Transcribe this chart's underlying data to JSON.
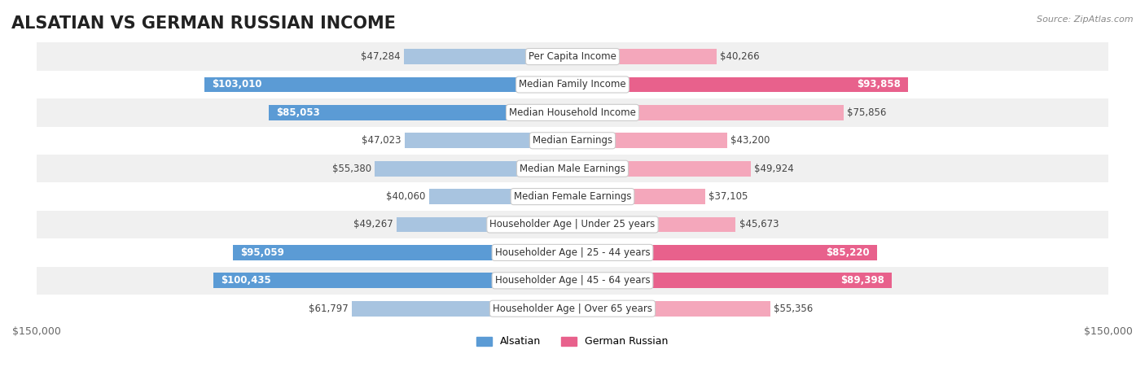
{
  "title": "ALSATIAN VS GERMAN RUSSIAN INCOME",
  "source": "Source: ZipAtlas.com",
  "categories": [
    "Per Capita Income",
    "Median Family Income",
    "Median Household Income",
    "Median Earnings",
    "Median Male Earnings",
    "Median Female Earnings",
    "Householder Age | Under 25 years",
    "Householder Age | 25 - 44 years",
    "Householder Age | 45 - 64 years",
    "Householder Age | Over 65 years"
  ],
  "alsatian_values": [
    47284,
    103010,
    85053,
    47023,
    55380,
    40060,
    49267,
    95059,
    100435,
    61797
  ],
  "german_russian_values": [
    40266,
    93858,
    75856,
    43200,
    49924,
    37105,
    45673,
    85220,
    89398,
    55356
  ],
  "alsatian_labels": [
    "$47,284",
    "$103,010",
    "$85,053",
    "$47,023",
    "$55,380",
    "$40,060",
    "$49,267",
    "$95,059",
    "$100,435",
    "$61,797"
  ],
  "german_russian_labels": [
    "$40,266",
    "$93,858",
    "$75,856",
    "$43,200",
    "$49,924",
    "$37,105",
    "$45,673",
    "$85,220",
    "$89,398",
    "$55,356"
  ],
  "alsatian_color_light": "#a8c4e0",
  "alsatian_color_dark": "#5b9bd5",
  "german_russian_color_light": "#f4a7bb",
  "german_russian_color_dark": "#e8618c",
  "max_value": 150000,
  "bar_height": 0.55,
  "row_bg_color_odd": "#f0f0f0",
  "row_bg_color_even": "#ffffff",
  "label_box_color": "#ffffff",
  "label_box_edge": "#cccccc",
  "title_fontsize": 15,
  "label_fontsize": 8.5,
  "category_fontsize": 8.5,
  "axis_label_fontsize": 9,
  "legend_fontsize": 9
}
